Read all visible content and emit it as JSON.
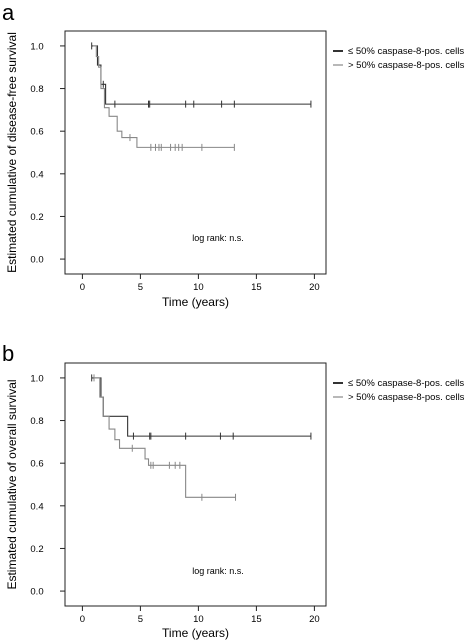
{
  "chart_data": [
    {
      "type": "line",
      "subtype": "kaplan-meier",
      "panel_label": "a",
      "xlabel": "Time (years)",
      "ylabel": "Estimated cumulative of disease-free survival",
      "xlim": [
        -1.5,
        21
      ],
      "ylim": [
        -0.07,
        1.07
      ],
      "x_ticks": [
        0,
        5,
        10,
        15,
        20
      ],
      "y_ticks": [
        0.0,
        0.2,
        0.4,
        0.6,
        0.8,
        1.0
      ],
      "y_tick_labels": [
        "0.0",
        "0.2",
        "0.4",
        "0.6",
        "0.8",
        "1.0"
      ],
      "legend_position": "right",
      "annotation": "log rank: n.s.",
      "grid": false,
      "series": [
        {
          "name": "≤ 50% caspase-8-pos. cells",
          "color": "#333333",
          "steps": [
            [
              0.8,
              1.0
            ],
            [
              1.3,
              0.91
            ],
            [
              1.6,
              0.82
            ],
            [
              2.0,
              0.727
            ],
            [
              19.7,
              0.727
            ]
          ],
          "censored": [
            [
              0.8,
              1.0
            ],
            [
              1.8,
              0.82
            ],
            [
              2.8,
              0.727
            ],
            [
              5.7,
              0.727
            ],
            [
              5.8,
              0.727
            ],
            [
              8.9,
              0.727
            ],
            [
              9.6,
              0.727
            ],
            [
              12.0,
              0.727
            ],
            [
              13.1,
              0.727
            ],
            [
              19.7,
              0.727
            ]
          ]
        },
        {
          "name": "> 50% caspase-8-pos. cells",
          "color": "#888888",
          "steps": [
            [
              0.9,
              1.0
            ],
            [
              1.2,
              0.95
            ],
            [
              1.4,
              0.9
            ],
            [
              1.6,
              0.8
            ],
            [
              1.9,
              0.71
            ],
            [
              2.3,
              0.67
            ],
            [
              3.0,
              0.6
            ],
            [
              3.4,
              0.57
            ],
            [
              4.7,
              0.524
            ],
            [
              13.1,
              0.524
            ]
          ],
          "censored": [
            [
              4.1,
              0.57
            ],
            [
              5.9,
              0.524
            ],
            [
              6.3,
              0.524
            ],
            [
              6.6,
              0.524
            ],
            [
              6.8,
              0.524
            ],
            [
              7.6,
              0.524
            ],
            [
              8.0,
              0.524
            ],
            [
              8.3,
              0.524
            ],
            [
              8.6,
              0.524
            ],
            [
              10.3,
              0.524
            ],
            [
              13.1,
              0.524
            ]
          ]
        }
      ]
    },
    {
      "type": "line",
      "subtype": "kaplan-meier",
      "panel_label": "b",
      "xlabel": "Time (years)",
      "ylabel": "Estimated cumulative of overall survival",
      "xlim": [
        -1.5,
        21
      ],
      "ylim": [
        -0.07,
        1.07
      ],
      "x_ticks": [
        0,
        5,
        10,
        15,
        20
      ],
      "y_ticks": [
        0.0,
        0.2,
        0.4,
        0.6,
        0.8,
        1.0
      ],
      "y_tick_labels": [
        "0.0",
        "0.2",
        "0.4",
        "0.6",
        "0.8",
        "1.0"
      ],
      "legend_position": "right",
      "annotation": "log rank: n.s.",
      "grid": false,
      "series": [
        {
          "name": "≤ 50% caspase-8-pos. cells",
          "color": "#333333",
          "steps": [
            [
              0.8,
              1.0
            ],
            [
              1.6,
              0.91
            ],
            [
              1.8,
              0.82
            ],
            [
              3.9,
              0.727
            ],
            [
              19.7,
              0.727
            ]
          ],
          "censored": [
            [
              0.8,
              1.0
            ],
            [
              4.4,
              0.727
            ],
            [
              5.8,
              0.727
            ],
            [
              5.9,
              0.727
            ],
            [
              8.9,
              0.727
            ],
            [
              11.9,
              0.727
            ],
            [
              13.0,
              0.727
            ],
            [
              19.7,
              0.727
            ]
          ]
        },
        {
          "name": "> 50% caspase-8-pos. cells",
          "color": "#888888",
          "steps": [
            [
              1.0,
              1.0
            ],
            [
              1.5,
              0.91
            ],
            [
              1.8,
              0.82
            ],
            [
              2.3,
              0.76
            ],
            [
              2.8,
              0.71
            ],
            [
              3.2,
              0.67
            ],
            [
              5.4,
              0.62
            ],
            [
              5.7,
              0.59
            ],
            [
              8.9,
              0.44
            ],
            [
              13.2,
              0.44
            ]
          ],
          "censored": [
            [
              1.0,
              1.0
            ],
            [
              4.3,
              0.67
            ],
            [
              5.9,
              0.59
            ],
            [
              6.1,
              0.59
            ],
            [
              7.5,
              0.59
            ],
            [
              8.0,
              0.59
            ],
            [
              8.4,
              0.59
            ],
            [
              10.3,
              0.44
            ],
            [
              13.2,
              0.44
            ]
          ]
        }
      ]
    }
  ]
}
